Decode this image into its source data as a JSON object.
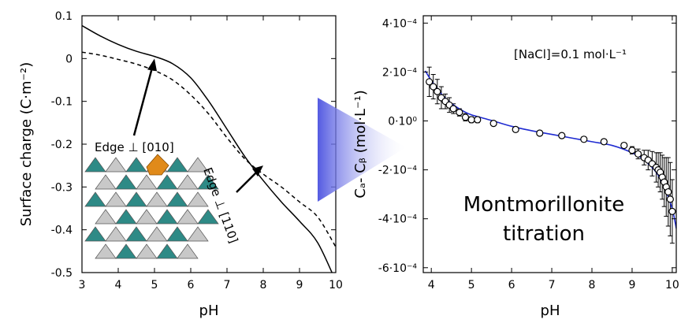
{
  "chart_data": [
    {
      "type": "line",
      "xlabel": "pH",
      "ylabel": "Surface charge (C·m⁻²)",
      "xlim": [
        3,
        10
      ],
      "ylim": [
        -0.5,
        0.1
      ],
      "xticks": [
        "3",
        "4",
        "5",
        "6",
        "7",
        "8",
        "9",
        "10"
      ],
      "yticks": [
        "0.1",
        "0",
        "-0.1",
        "-0.2",
        "-0.3",
        "-0.4",
        "-0.5"
      ],
      "series": [
        {
          "name": "",
          "style": "solid",
          "x": [
            3.0,
            3.5,
            4.0,
            4.5,
            5.0,
            5.5,
            6.0,
            6.5,
            7.0,
            7.5,
            8.0,
            8.5,
            9.0,
            9.5,
            10.0
          ],
          "y": [
            0.077,
            0.053,
            0.033,
            0.017,
            0.005,
            -0.012,
            -0.045,
            -0.1,
            -0.165,
            -0.23,
            -0.285,
            -0.335,
            -0.38,
            -0.43,
            -0.52
          ]
        },
        {
          "name": "",
          "style": "dashed",
          "x": [
            3.0,
            3.5,
            4.0,
            4.5,
            5.0,
            5.5,
            6.0,
            6.5,
            7.0,
            7.5,
            8.0,
            8.5,
            9.0,
            9.5,
            10.0
          ],
          "y": [
            0.015,
            0.008,
            -0.002,
            -0.013,
            -0.028,
            -0.05,
            -0.085,
            -0.13,
            -0.185,
            -0.235,
            -0.27,
            -0.3,
            -0.335,
            -0.37,
            -0.44
          ]
        }
      ],
      "annotations": [
        {
          "text": "Edge ⊥ [010]",
          "x": 5.0,
          "y": 0.0
        },
        {
          "text": "Edge ⊥ [110]",
          "x": 8.0,
          "y": -0.25
        }
      ]
    },
    {
      "type": "scatter",
      "xlabel": "pH",
      "ylabel": "Cₐ- Cᵦ (mol·L⁻¹)",
      "xlim": [
        3.8,
        10.1
      ],
      "ylim": [
        -0.00062,
        0.00043
      ],
      "xticks": [
        "4",
        "5",
        "6",
        "7",
        "8",
        "9",
        "10"
      ],
      "yticks": [
        "4·10⁻⁴",
        "2·10⁻⁴",
        "0·10⁰",
        "-2·10⁻⁴",
        "-4·10⁻⁴",
        "-6·10⁻⁴"
      ],
      "annotations": [
        {
          "text": "[NaCl]=0.1 mol·L⁻¹"
        },
        {
          "text": "Montmorillonite"
        },
        {
          "text": "titration"
        }
      ],
      "series": [
        {
          "name": "",
          "style": "open-circles",
          "x": [
            3.95,
            4.05,
            4.15,
            4.25,
            4.35,
            4.45,
            4.55,
            4.7,
            4.85,
            5.0,
            5.15,
            5.55,
            6.1,
            6.7,
            7.25,
            7.8,
            8.3,
            8.8,
            9.0,
            9.15,
            9.3,
            9.4,
            9.5,
            9.6,
            9.65,
            9.7,
            9.75,
            9.8,
            9.85,
            9.9,
            9.95,
            10.0
          ],
          "y": [
            0.00016,
            0.00014,
            0.00012,
            9.5e-05,
            8e-05,
            6.5e-05,
            5e-05,
            3.5e-05,
            1.5e-05,
            5e-06,
            5e-06,
            -1e-05,
            -3.5e-05,
            -5e-05,
            -6e-05,
            -7.5e-05,
            -8.5e-05,
            -0.0001,
            -0.00012,
            -0.000135,
            -0.00015,
            -0.00016,
            -0.000175,
            -0.00019,
            -0.0002,
            -0.00021,
            -0.00023,
            -0.00025,
            -0.00027,
            -0.00029,
            -0.00032,
            -0.00037
          ],
          "yerr": [
            6e-05,
            5e-05,
            5e-05,
            4.5e-05,
            3e-05,
            3e-05,
            2e-05,
            1.5e-05,
            1.5e-05,
            1.2e-05,
            1.2e-05,
            1e-05,
            1e-05,
            1e-05,
            1e-05,
            1e-05,
            1e-05,
            1e-05,
            1.5e-05,
            2e-05,
            3e-05,
            4e-05,
            5e-05,
            6e-05,
            7e-05,
            8e-05,
            9e-05,
            0.0001,
            0.00012,
            0.00014,
            0.00015,
            0.00013
          ]
        },
        {
          "name": "",
          "style": "blue-line",
          "x": [
            3.85,
            4.0,
            4.2,
            4.4,
            4.6,
            4.8,
            5.0,
            5.5,
            6.0,
            6.5,
            7.0,
            7.5,
            8.0,
            8.5,
            9.0,
            9.3,
            9.6,
            9.8,
            10.0,
            10.1
          ],
          "y": [
            0.000205,
            0.000165,
            0.00012,
            8.5e-05,
            6e-05,
            4e-05,
            2.5e-05,
            2e-06,
            -2.2e-05,
            -4e-05,
            -5.5e-05,
            -7e-05,
            -8.5e-05,
            -0.0001,
            -0.00013,
            -0.00016,
            -0.00021,
            -0.00027,
            -0.00036,
            -0.00044
          ]
        }
      ]
    }
  ],
  "colors": {
    "curve": "#000000",
    "fit_line": "#1f2bd1",
    "triangle": "#5b62e6",
    "crystal_teal": "#2e8a86",
    "crystal_gray": "#c8c8c8",
    "crystal_orange": "#e08a1a"
  }
}
